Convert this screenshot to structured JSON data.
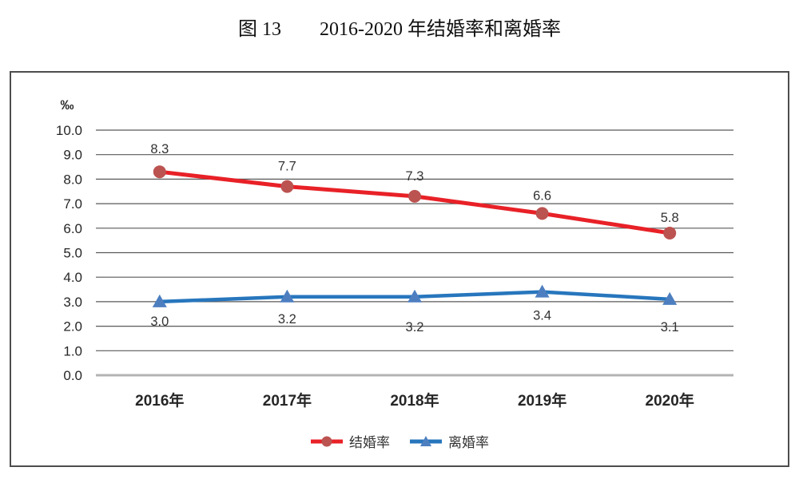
{
  "title": "图 13　　2016-2020 年结婚率和离婚率",
  "chart_data": {
    "type": "line",
    "title": "图 13  2016-2020 年结婚率和离婚率",
    "unit_label": "‰",
    "categories": [
      "2016年",
      "2017年",
      "2018年",
      "2019年",
      "2020年"
    ],
    "series": [
      {
        "name": "结婚率",
        "values": [
          8.3,
          7.7,
          7.3,
          6.6,
          5.8
        ],
        "labels": [
          "8.3",
          "7.7",
          "7.3",
          "6.6",
          "5.8"
        ],
        "line_color": "#e82127",
        "marker_color": "#bb5351",
        "marker": "circle",
        "line_width": 5,
        "label_position": "above",
        "label_dy": [
          -23,
          -20,
          -20,
          -17,
          -14
        ]
      },
      {
        "name": "离婚率",
        "values": [
          3.0,
          3.2,
          3.2,
          3.4,
          3.1
        ],
        "labels": [
          "3.0",
          "3.2",
          "3.2",
          "3.4",
          "3.1"
        ],
        "line_color": "#2776bd",
        "marker_color": "#4d7fc0",
        "marker": "triangle",
        "line_width": 4.5,
        "label_position": "below",
        "label_dy": [
          30,
          33,
          43,
          35,
          40
        ]
      }
    ],
    "ylim": [
      0,
      10
    ],
    "ytick_step": 1,
    "ytick_format_decimals": 1,
    "grid": true,
    "legend_position": "bottom",
    "colors": {
      "gridline": "#595959",
      "zero_line": "#b3b3b3",
      "frame_border": "#4d4d4d",
      "tick_text": "#262626",
      "data_label_text": "#333333"
    }
  }
}
